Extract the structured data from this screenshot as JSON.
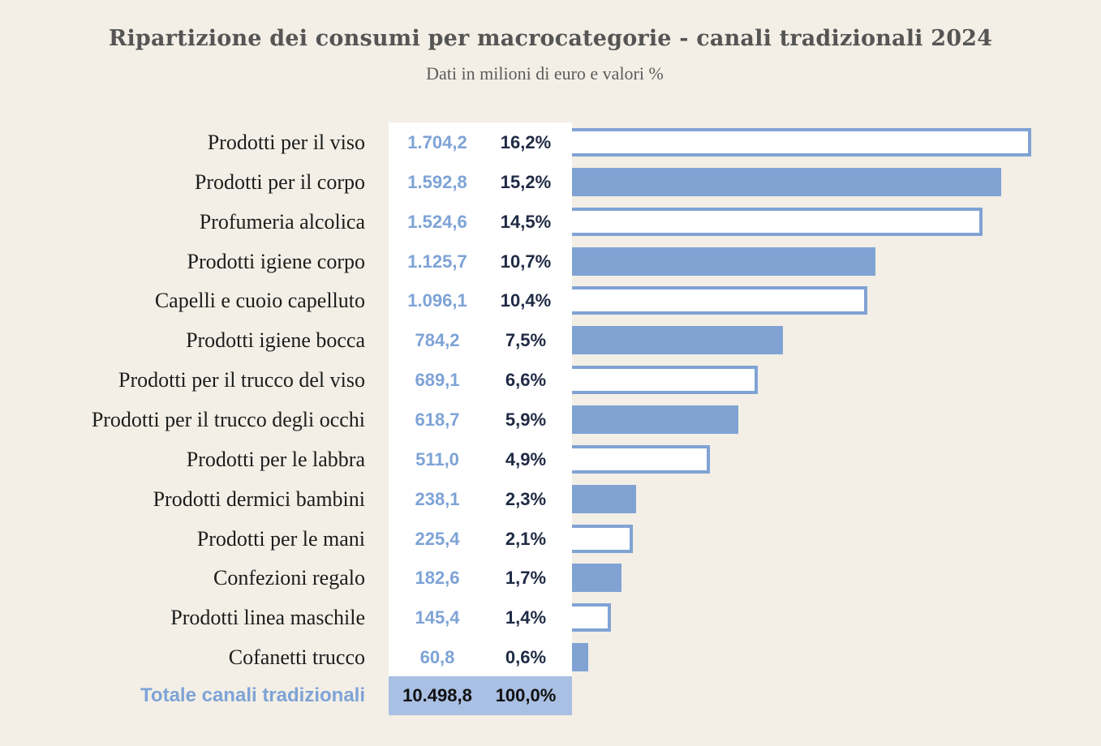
{
  "chart_data": {
    "type": "bar",
    "orientation": "horizontal",
    "title": "Ripartizione dei consumi per macrocategorie - canali tradizionali 2024",
    "subtitle": "Dati in milioni di euro e valori %",
    "categories": [
      "Prodotti per il viso",
      "Prodotti per il corpo",
      "Profumeria alcolica",
      "Prodotti igiene corpo",
      "Capelli e cuoio capelluto",
      "Prodotti igiene bocca",
      "Prodotti per il trucco del viso",
      "Prodotti per il trucco degli occhi",
      "Prodotti per le labbra",
      "Prodotti dermici bambini",
      "Prodotti per le mani",
      "Confezioni regalo",
      "Prodotti linea maschile",
      "Cofanetti trucco"
    ],
    "values": [
      1704.2,
      1592.8,
      1524.6,
      1125.7,
      1096.1,
      784.2,
      689.1,
      618.7,
      511.0,
      238.1,
      225.4,
      182.6,
      145.4,
      60.8
    ],
    "value_labels": [
      "1.704,2",
      "1.592,8",
      "1.524,6",
      "1.125,7",
      "1.096,1",
      "784,2",
      "689,1",
      "618,7",
      "511,0",
      "238,1",
      "225,4",
      "182,6",
      "145,4",
      "60,8"
    ],
    "percent_labels": [
      "16,2%",
      "15,2%",
      "14,5%",
      "10,7%",
      "10,4%",
      "7,5%",
      "6,6%",
      "5,9%",
      "4,9%",
      "2,3%",
      "2,1%",
      "1,7%",
      "1,4%",
      "0,6%"
    ],
    "total": {
      "label": "Totale canali tradizionali",
      "value": "10.498,8",
      "percent": "100,0%"
    }
  },
  "colors": {
    "background": "#f3efe6",
    "bar": "#80a3d4",
    "value_text": "#7ea3d6",
    "percent_text": "#1f2a44",
    "total_bg": "#a9bfe3"
  }
}
